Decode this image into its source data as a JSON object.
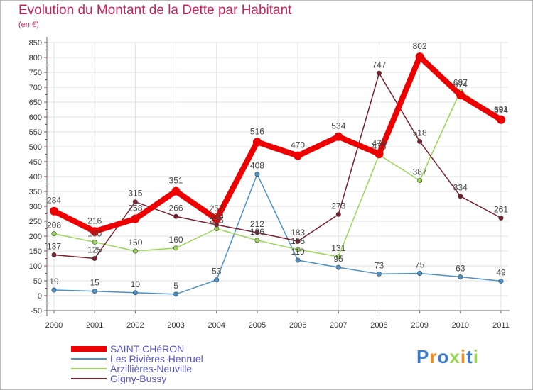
{
  "title": "Evolution du Montant de la Dette par Habitant",
  "unit_label": "(en €)",
  "logo_text": "Proxiti",
  "colors": {
    "title": "#c8225a",
    "axis": "#666666",
    "grid": "#e1e1e1"
  },
  "chart_data": {
    "type": "line",
    "title": "Evolution du Montant de la Dette par Habitant",
    "ylabel": "(en €)",
    "xlabel": "",
    "x": [
      "2000",
      "2001",
      "2002",
      "2003",
      "2004",
      "2005",
      "2006",
      "2007",
      "2008",
      "2009",
      "2010",
      "2011"
    ],
    "ylim": [
      -50,
      850
    ],
    "yticks": [
      -50,
      0,
      50,
      100,
      150,
      200,
      250,
      300,
      350,
      400,
      450,
      500,
      550,
      600,
      650,
      700,
      750,
      800,
      850
    ],
    "grid": true,
    "legend": "bottom-left",
    "series": [
      {
        "name": "SAINT-CHéRON",
        "color": "#ee0000",
        "values": [
          284,
          216,
          258,
          351,
          257,
          516,
          470,
          534,
          476,
          802,
          674,
          591
        ]
      },
      {
        "name": "Les Rivières-Henruel",
        "color": "#4b92c8",
        "values": [
          19,
          15,
          10,
          5,
          53,
          408,
          119,
          95,
          73,
          75,
          63,
          49
        ]
      },
      {
        "name": "Arzillières-Neuville",
        "color": "#9ad655",
        "values": [
          208,
          180,
          150,
          160,
          225,
          186,
          155,
          131,
          473,
          387,
          687,
          594
        ]
      },
      {
        "name": "Gigny-Bussy",
        "color": "#7a1f2b",
        "values": [
          137,
          125,
          315,
          266,
          238,
          212,
          183,
          273,
          747,
          518,
          334,
          261
        ]
      }
    ]
  }
}
